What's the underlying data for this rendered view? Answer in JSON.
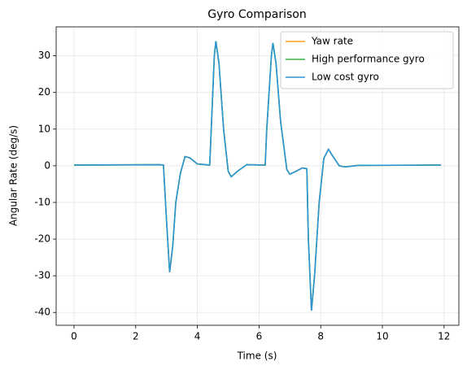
{
  "chart_data": {
    "type": "line",
    "title": "Gyro Comparison",
    "x_label": "Time (s)",
    "y_label": "Angular Rate (deg/s)",
    "x": [
      0,
      2.8,
      2.9,
      3.0,
      3.1,
      3.2,
      3.3,
      3.45,
      3.6,
      3.75,
      4.0,
      4.4,
      4.45,
      4.55,
      4.6,
      4.7,
      4.85,
      5.0,
      5.1,
      5.3,
      5.6,
      6.2,
      6.25,
      6.4,
      6.45,
      6.55,
      6.7,
      6.9,
      7.0,
      7.2,
      7.4,
      7.55,
      7.6,
      7.7,
      7.8,
      7.95,
      8.1,
      8.25,
      8.4,
      8.6,
      8.8,
      9.2,
      11.9
    ],
    "series": [
      {
        "name": "Yaw rate",
        "color": "#ff9f1c",
        "values": [
          0.2,
          0.3,
          0.2,
          -15,
          -29,
          -22,
          -10,
          -2,
          2.5,
          2.2,
          0.5,
          0.2,
          10,
          30,
          34,
          28,
          10,
          -1.5,
          -3,
          -1.5,
          0.3,
          0.2,
          10,
          30,
          33.5,
          28,
          12,
          -1,
          -2.3,
          -1.5,
          -0.6,
          -0.8,
          -20,
          -39.5,
          -30,
          -10,
          2,
          4.5,
          2.5,
          0,
          -0.3,
          0.1,
          0.2
        ]
      },
      {
        "name": "High performance gyro",
        "color": "#3cb043",
        "values": [
          0.2,
          0.3,
          0.2,
          -15,
          -29,
          -22,
          -10,
          -2,
          2.5,
          2.2,
          0.5,
          0.2,
          10,
          30,
          34,
          28,
          10,
          -1.5,
          -3,
          -1.5,
          0.3,
          0.2,
          10,
          30,
          33.5,
          28,
          12,
          -1,
          -2.3,
          -1.5,
          -0.6,
          -0.8,
          -20,
          -39.5,
          -30,
          -10,
          2,
          4.5,
          2.5,
          0,
          -0.3,
          0.1,
          0.2
        ]
      },
      {
        "name": "Low cost gyro",
        "color": "#2b96d6",
        "values": [
          0.2,
          0.3,
          0.2,
          -15,
          -29,
          -22,
          -10,
          -2,
          2.5,
          2.2,
          0.5,
          0.2,
          10,
          30,
          34,
          28,
          10,
          -1.5,
          -3,
          -1.5,
          0.3,
          0.2,
          10,
          30,
          33.5,
          28,
          12,
          -1,
          -2.3,
          -1.5,
          -0.6,
          -0.8,
          -20,
          -39.5,
          -30,
          -10,
          2,
          4.5,
          2.5,
          0,
          -0.3,
          0.1,
          0.2
        ]
      }
    ],
    "xlim": [
      -0.58,
      12.48
    ],
    "ylim": [
      -43.5,
      37.9
    ],
    "xticks": [
      0,
      2,
      4,
      6,
      8,
      10,
      12
    ],
    "yticks": [
      -40,
      -30,
      -20,
      -10,
      0,
      10,
      20,
      30
    ],
    "grid": true,
    "legend": "upper right"
  }
}
